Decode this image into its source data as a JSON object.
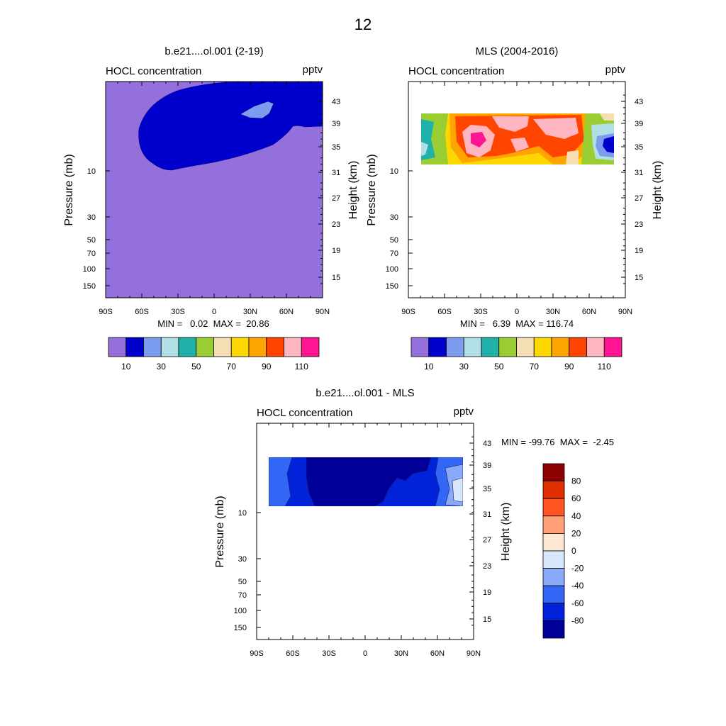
{
  "page_title": "12",
  "chart_data": [
    {
      "type": "heatmap",
      "title": "b.e21....ol.001 (2-19)",
      "left_label": "HOCL concentration",
      "right_label": "pptv",
      "ylabel": "Pressure (mb)",
      "ylabel2": "Height (km)",
      "x_ticks": [
        "90S",
        "60S",
        "30S",
        "0",
        "30N",
        "60N",
        "90N"
      ],
      "y_ticks": [
        "10",
        "30",
        "50",
        "70",
        "100",
        "150"
      ],
      "y2_ticks": [
        "43",
        "39",
        "35",
        "31",
        "27",
        "23",
        "19",
        "15"
      ],
      "stats": "MIN =   0.02  MAX =  20.86",
      "colorbar": {
        "colors": [
          "#9370db",
          "#0000cd",
          "#7b9cef",
          "#b0e0e6",
          "#20b2aa",
          "#9acd32",
          "#f5deb3",
          "#ffd700",
          "#ffa500",
          "#ff4500",
          "#ffb6c1",
          "#ff1493"
        ],
        "labels": [
          "10",
          "30",
          "50",
          "70",
          "90",
          "110"
        ]
      },
      "fields": [
        {
          "level": "0-10",
          "color": "#9370db",
          "region": "background"
        },
        {
          "level": "10-20",
          "color": "#0000cd",
          "region": "upper tongue 65S-90N above 10 mb"
        },
        {
          "level": "20-30",
          "color": "#7b9cef",
          "region": "small patch near 45N, 42 km"
        }
      ]
    },
    {
      "type": "heatmap",
      "title": "MLS (2004-2016)",
      "left_label": "HOCL concentration",
      "right_label": "pptv",
      "ylabel": "Pressure (mb)",
      "ylabel2": "Height (km)",
      "x_ticks": [
        "90S",
        "60S",
        "30S",
        "0",
        "30N",
        "60N",
        "90N"
      ],
      "y_ticks": [
        "10",
        "30",
        "50",
        "70",
        "100",
        "150"
      ],
      "y2_ticks": [
        "43",
        "39",
        "35",
        "31",
        "27",
        "23",
        "19",
        "15"
      ],
      "stats": "MIN =   6.39  MAX = 116.74",
      "colorbar": {
        "colors": [
          "#9370db",
          "#0000cd",
          "#7b9cef",
          "#b0e0e6",
          "#20b2aa",
          "#9acd32",
          "#f5deb3",
          "#ffd700",
          "#ffa500",
          "#ff4500",
          "#ffb6c1",
          "#ff1493"
        ],
        "labels": [
          "10",
          "30",
          "50",
          "70",
          "90",
          "110"
        ]
      },
      "data_extent": {
        "lat": [
          -80,
          80
        ]
      }
    },
    {
      "type": "heatmap",
      "title": "b.e21....ol.001 - MLS",
      "left_label": "HOCL concentration",
      "right_label": "pptv",
      "ylabel": "Pressure (mb)",
      "ylabel2": "Height (km)",
      "x_ticks": [
        "90S",
        "60S",
        "30S",
        "0",
        "30N",
        "60N",
        "90N"
      ],
      "y_ticks": [
        "10",
        "30",
        "50",
        "70",
        "100",
        "150"
      ],
      "y2_ticks": [
        "43",
        "39",
        "35",
        "31",
        "27",
        "23",
        "19",
        "15"
      ],
      "stats": "MIN = -99.76  MAX =  -2.45",
      "colorbar": {
        "colors": [
          "#8b0000",
          "#e03000",
          "#ff5522",
          "#ffa07a",
          "#fde8d4",
          "#d8e8fa",
          "#88aaf8",
          "#3366f4",
          "#0022d8",
          "#000099"
        ],
        "labels": [
          "80",
          "60",
          "40",
          "20",
          "0",
          "-20",
          "-40",
          "-60",
          "-80"
        ]
      },
      "data_extent": {
        "lat": [
          -80,
          80
        ]
      }
    }
  ]
}
